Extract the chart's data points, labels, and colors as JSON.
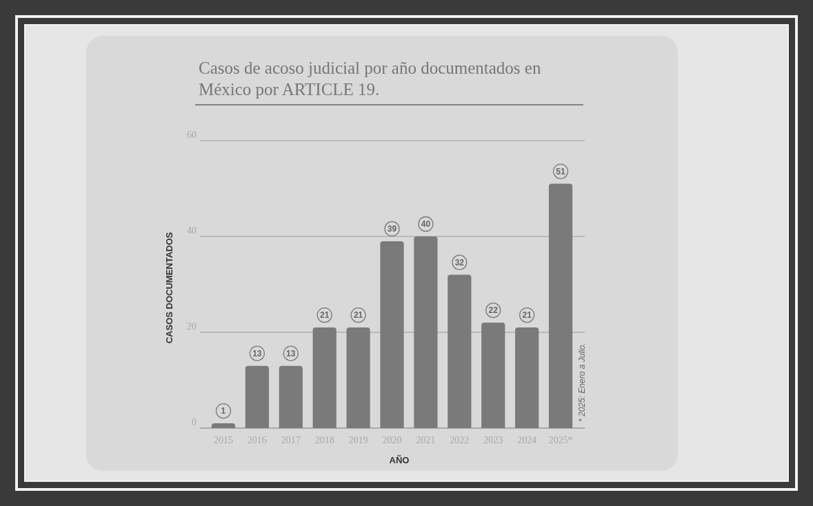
{
  "chart_data": {
    "type": "bar",
    "title": "Casos de acoso judicial por año documentados en México por ARTICLE 19.",
    "xlabel": "AÑO",
    "ylabel": "CASOS DOCUMENTADOS",
    "categories": [
      "2015",
      "2016",
      "2017",
      "2018",
      "2019",
      "2020",
      "2021",
      "2022",
      "2023",
      "2024",
      "2025*"
    ],
    "values": [
      1,
      13,
      13,
      21,
      21,
      39,
      40,
      32,
      22,
      21,
      51
    ],
    "color": "#7a7a7a",
    "ylim": [
      0,
      60
    ],
    "yticks": [
      0,
      20,
      40,
      60
    ],
    "grid": "y",
    "data_labels": true,
    "annotations": [
      "* 2025: Enero a Julio."
    ]
  }
}
